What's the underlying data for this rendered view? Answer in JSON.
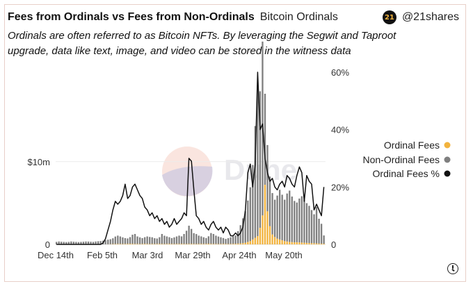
{
  "header": {
    "title": "Fees from Ordinals vs Fees from Non-Ordinals",
    "source": "Bitcoin Ordinals",
    "subtitle": "Ordinals are often referred to as Bitcoin NFTs. By leveraging the Segwit and Taproot upgrade, data like text, image, and video can be stored in the witness data",
    "brand_logo": "21",
    "brand_handle": "@21shares"
  },
  "watermark": "Dune",
  "colors": {
    "ordinal_fees": "#f2b33d",
    "non_ordinal_fees": "#7f7f7f",
    "ordinal_fees_pct": "#111111"
  },
  "chart_data": {
    "type": "bar",
    "x_tick_labels": [
      "Dec 14th",
      "Feb 5th",
      "Mar 3rd",
      "Mar 29th",
      "Apr 24th",
      "May 20th"
    ],
    "left_axis": {
      "ticks": [
        "0",
        "$10m"
      ],
      "range": [
        0,
        20800000
      ]
    },
    "right_axis": {
      "ticks": [
        "0",
        "20%",
        "40%",
        "60%"
      ],
      "range": [
        0,
        60
      ]
    },
    "legend_position": "right",
    "series": [
      {
        "name": "Ordinal Fees",
        "type": "bar",
        "axis": "left",
        "values": [
          0,
          0,
          0,
          0,
          0,
          0,
          0,
          0,
          0,
          0,
          0,
          0,
          0,
          0,
          0,
          0,
          0,
          0,
          0,
          0,
          10000,
          20000,
          30000,
          40000,
          50000,
          60000,
          60000,
          50000,
          60000,
          70000,
          80000,
          70000,
          60000,
          60000,
          50000,
          60000,
          70000,
          60000,
          50000,
          60000,
          50000,
          60000,
          70000,
          60000,
          50000,
          60000,
          70000,
          60000,
          50000,
          60000,
          60000,
          70000,
          60000,
          50000,
          60000,
          70000,
          60000,
          50000,
          60000,
          70000,
          60000,
          70000,
          80000,
          70000,
          60000,
          60000,
          50000,
          60000,
          70000,
          60000,
          50000,
          60000,
          70000,
          80000,
          100000,
          120000,
          150000,
          200000,
          300000,
          400000,
          600000,
          800000,
          1000000,
          2000000,
          3500000,
          7200000,
          4000000,
          2200000,
          1200000,
          900000,
          700000,
          600000,
          500000,
          400000,
          350000,
          300000,
          280000,
          250000,
          260000,
          240000,
          220000,
          200000,
          180000,
          160000,
          150000,
          140000,
          120000,
          100000,
          90000,
          80000
        ]
      },
      {
        "name": "Non-Ordinal Fees",
        "type": "bar",
        "axis": "left",
        "values": [
          300000,
          350000,
          320000,
          300000,
          280000,
          300000,
          350000,
          320000,
          300000,
          280000,
          300000,
          320000,
          350000,
          340000,
          320000,
          300000,
          350000,
          380000,
          400000,
          450000,
          500000,
          550000,
          600000,
          700000,
          900000,
          1000000,
          900000,
          800000,
          700000,
          650000,
          800000,
          1100000,
          1200000,
          900000,
          800000,
          700000,
          800000,
          900000,
          850000,
          800000,
          700000,
          650000,
          800000,
          1200000,
          1000000,
          900000,
          800000,
          700000,
          800000,
          900000,
          1000000,
          900000,
          1200000,
          1600000,
          2200000,
          1800000,
          1300000,
          1200000,
          1000000,
          900000,
          800000,
          700000,
          900000,
          1300000,
          1200000,
          1000000,
          900000,
          800000,
          700000,
          600000,
          700000,
          800000,
          900000,
          1000000,
          1500000,
          2200000,
          3000000,
          3800000,
          5000000,
          6500000,
          9000000,
          13500000,
          18200000,
          16500000,
          21000000,
          11000000,
          8000000,
          6000000,
          5000000,
          4500000,
          5200000,
          6000000,
          5500000,
          5000000,
          5800000,
          6200000,
          5500000,
          5000000,
          4800000,
          5300000,
          5600000,
          5200000,
          4800000,
          4500000,
          4000000,
          3500000,
          4400000,
          3000000,
          2400000,
          1000000
        ]
      },
      {
        "name": "Ordinal Fees %",
        "type": "line",
        "axis": "right",
        "values": [
          0,
          0,
          0,
          0,
          0,
          0,
          0,
          0,
          0,
          0,
          0,
          0,
          0,
          0,
          0,
          0,
          0,
          0,
          0,
          0.5,
          2,
          5,
          8,
          12,
          15,
          14,
          15,
          17,
          21,
          16,
          17,
          20,
          21,
          19,
          17,
          16,
          13,
          12,
          10,
          11,
          9,
          10,
          8,
          9,
          7,
          8,
          6,
          7,
          9,
          7,
          8,
          9,
          11,
          10,
          30,
          29,
          19,
          10,
          9,
          7,
          8,
          6,
          5,
          7,
          8,
          6,
          5,
          6,
          4,
          6,
          5,
          3,
          3,
          4,
          3,
          4,
          6,
          12,
          25,
          28,
          20,
          28,
          60,
          40,
          42,
          30,
          25,
          22,
          23,
          20,
          19,
          21,
          22,
          20,
          24,
          23,
          21,
          20,
          24,
          27,
          25,
          15,
          24,
          22,
          21,
          12,
          14,
          12,
          10,
          20
        ]
      }
    ]
  }
}
